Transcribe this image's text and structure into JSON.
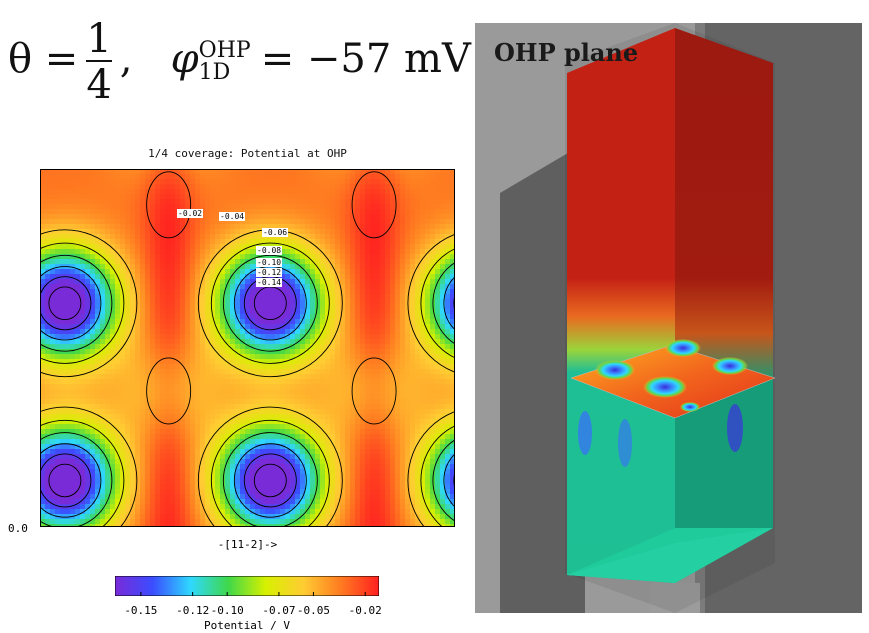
{
  "equation": {
    "theta_symbol": "θ =",
    "numerator": "1",
    "denominator": "4",
    "separator": ",",
    "phi_symbol": "φ",
    "phi_superscript": "OHP",
    "phi_subscript": "1D",
    "rhs": "= −57 mV"
  },
  "chart_data": {
    "type": "heatmap",
    "title": "1/4 coverage: Potential at OHP",
    "xlabel": "-[11-2]->",
    "y_tick_label": "0.0",
    "colorbar": {
      "label": "Potential / V",
      "ticks": [
        "-0.15",
        "-0.12",
        "-0.10",
        "-0.07",
        "-0.05",
        "-0.02"
      ],
      "tick_values": [
        -0.15,
        -0.12,
        -0.1,
        -0.07,
        -0.05,
        -0.02
      ],
      "range": [
        -0.165,
        -0.012
      ],
      "colors": [
        "#7a2bd8",
        "#3a4dff",
        "#2fd8ff",
        "#3fd84a",
        "#d7f000",
        "#ffcc33",
        "#ff7a20",
        "#ff2020"
      ]
    },
    "contour_levels": [
      -0.02,
      -0.04,
      -0.06,
      -0.08,
      -0.1,
      -0.12,
      -0.14
    ],
    "contour_labels": [
      "-0.02",
      "-0.04",
      "-0.06",
      "-0.08",
      "-0.10",
      "-0.12",
      "-0.14"
    ],
    "minimum_potential": -0.165,
    "maximum_potential": -0.012
  },
  "render_panel": {
    "label": "OHP plane"
  }
}
